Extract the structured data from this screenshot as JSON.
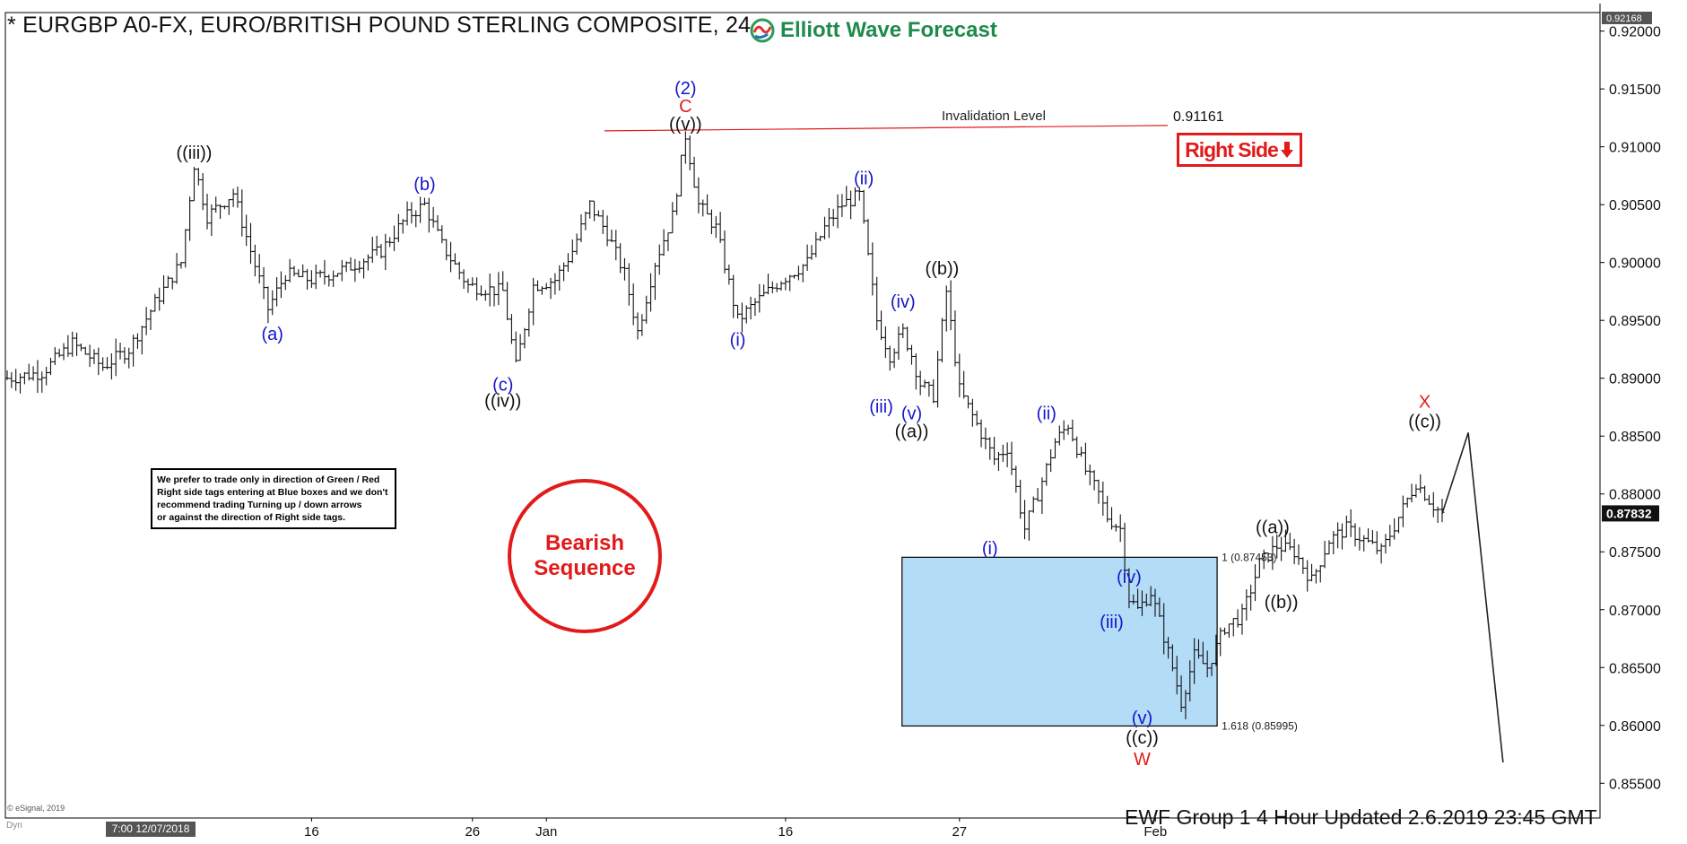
{
  "title": "* EURGBP A0-FX, EURO/BRITISH POUND STERLING COMPOSITE, 24",
  "brand": {
    "name": "Elliott Wave Forecast"
  },
  "footer": "EWF Group 1 4 Hour  Updated 2.6.2019 23:45 GMT",
  "copyright": "© eSignal, 2019",
  "dyn_label": "Dyn",
  "first_bar_date": "7:00 12/07/2018",
  "note_lines": [
    "We prefer to trade only in direction of Green / Red",
    "Right side tags entering at Blue boxes and we don't",
    "recommend trading Turning up / down arrows",
    "or against the direction of Right side tags."
  ],
  "bearish_label": [
    "Bearish",
    "Sequence"
  ],
  "right_side_tag": {
    "label": "Right Side",
    "arrow_icon": "down-arrow-icon",
    "color": "#e21a1a"
  },
  "invalidation": {
    "label": "Invalidation Level",
    "price_label": "0.91161",
    "price": 0.91161
  },
  "blue_box": {
    "top_label": "1 (0.87453)",
    "bottom_label": "1.618 (0.85995)",
    "top": 0.87453,
    "bottom": 0.85995,
    "color": "#b3dcf7"
  },
  "price_axis": {
    "high_tag": "0.92168",
    "current_tag": "0.87832",
    "current_value": 0.87832,
    "ticks": [
      "0.92000",
      "0.91500",
      "0.91000",
      "0.90500",
      "0.90000",
      "0.89500",
      "0.89000",
      "0.88500",
      "0.88000",
      "0.87500",
      "0.87000",
      "0.86500",
      "0.86000",
      "0.85500"
    ]
  },
  "time_axis": [
    "16",
    "26",
    "Jan",
    "16",
    "27",
    "Feb"
  ],
  "colors": {
    "blue_label": "#1515c8",
    "red_label": "#e21a1a",
    "black_label": "#111111",
    "bar": "#111111",
    "invalidation_line": "#e21a1a"
  },
  "chart_data": {
    "type": "ohlc",
    "symbol": "EURGBP",
    "timeframe": "4 Hour",
    "y_range": [
      0.852,
      0.9216
    ],
    "anchors": [
      [
        0,
        0.89
      ],
      [
        8,
        0.8905
      ],
      [
        15,
        0.893
      ],
      [
        22,
        0.891
      ],
      [
        28,
        0.8925
      ],
      [
        34,
        0.8965
      ],
      [
        40,
        0.9
      ],
      [
        43,
        0.9085
      ],
      [
        46,
        0.904
      ],
      [
        52,
        0.906
      ],
      [
        56,
        0.901
      ],
      [
        60,
        0.896
      ],
      [
        64,
        0.899
      ],
      [
        70,
        0.8985
      ],
      [
        78,
        0.8995
      ],
      [
        86,
        0.901
      ],
      [
        92,
        0.904
      ],
      [
        96,
        0.905
      ],
      [
        100,
        0.9015
      ],
      [
        106,
        0.898
      ],
      [
        114,
        0.8975
      ],
      [
        117,
        0.891
      ],
      [
        121,
        0.898
      ],
      [
        126,
        0.8985
      ],
      [
        130,
        0.901
      ],
      [
        134,
        0.905
      ],
      [
        138,
        0.9025
      ],
      [
        142,
        0.899
      ],
      [
        145,
        0.894
      ],
      [
        149,
        0.9
      ],
      [
        153,
        0.904
      ],
      [
        156,
        0.911
      ],
      [
        159,
        0.905
      ],
      [
        163,
        0.903
      ],
      [
        168,
        0.895
      ],
      [
        172,
        0.8965
      ],
      [
        178,
        0.8985
      ],
      [
        184,
        0.9
      ],
      [
        188,
        0.903
      ],
      [
        192,
        0.905
      ],
      [
        196,
        0.9058
      ],
      [
        200,
        0.895
      ],
      [
        203,
        0.892
      ],
      [
        206,
        0.894
      ],
      [
        208,
        0.892
      ],
      [
        210,
        0.8895
      ],
      [
        213,
        0.8885
      ],
      [
        216,
        0.8975
      ],
      [
        219,
        0.889
      ],
      [
        223,
        0.886
      ],
      [
        227,
        0.883
      ],
      [
        230,
        0.884
      ],
      [
        234,
        0.877
      ],
      [
        237,
        0.88
      ],
      [
        241,
        0.8845
      ],
      [
        244,
        0.886
      ],
      [
        248,
        0.882
      ],
      [
        251,
        0.88
      ],
      [
        253,
        0.878
      ],
      [
        256,
        0.877
      ],
      [
        258,
        0.871
      ],
      [
        260,
        0.87
      ],
      [
        263,
        0.8715
      ],
      [
        265,
        0.869
      ],
      [
        268,
        0.865
      ],
      [
        270,
        0.862
      ],
      [
        273,
        0.866
      ],
      [
        276,
        0.865
      ],
      [
        280,
        0.8685
      ],
      [
        284,
        0.8695
      ],
      [
        288,
        0.874
      ],
      [
        292,
        0.8755
      ],
      [
        296,
        0.875
      ],
      [
        300,
        0.8725
      ],
      [
        304,
        0.876
      ],
      [
        308,
        0.877
      ],
      [
        312,
        0.876
      ],
      [
        316,
        0.875
      ],
      [
        320,
        0.878
      ],
      [
        324,
        0.881
      ],
      [
        328,
        0.879
      ],
      [
        330,
        0.8783
      ]
    ],
    "last_bar_index": 330,
    "projection": [
      [
        330,
        0.8783
      ],
      [
        336,
        0.8853
      ],
      [
        344,
        0.8568
      ]
    ],
    "wave_labels": [
      {
        "text": "(2)",
        "i": 156,
        "price": 0.911,
        "pos": "above",
        "offset": 46,
        "color": "blue"
      },
      {
        "text": "C",
        "i": 156,
        "price": 0.911,
        "pos": "above",
        "offset": 26,
        "color": "red"
      },
      {
        "text": "((v))",
        "i": 156,
        "price": 0.911,
        "pos": "above",
        "offset": 6,
        "color": "black"
      },
      {
        "text": "((iii))",
        "i": 43,
        "price": 0.9085,
        "pos": "above",
        "offset": 6,
        "color": "black"
      },
      {
        "text": "(b)",
        "i": 96,
        "price": 0.9058,
        "pos": "above",
        "offset": 6,
        "color": "blue"
      },
      {
        "text": "(a)",
        "i": 61,
        "price": 0.895,
        "pos": "below",
        "offset": 6,
        "color": "blue"
      },
      {
        "text": "(c)",
        "i": 114,
        "price": 0.8905,
        "pos": "below",
        "offset": 4,
        "color": "blue"
      },
      {
        "text": "((iv))",
        "i": 114,
        "price": 0.8905,
        "pos": "below",
        "offset": 22,
        "color": "black"
      },
      {
        "text": "(i)",
        "i": 168,
        "price": 0.8945,
        "pos": "below",
        "offset": 6,
        "color": "blue"
      },
      {
        "text": "(ii)",
        "i": 197,
        "price": 0.9063,
        "pos": "above",
        "offset": 6,
        "color": "blue"
      },
      {
        "text": "(iii)",
        "i": 201,
        "price": 0.8895,
        "pos": "below",
        "offset": 16,
        "color": "blue"
      },
      {
        "text": "(iv)",
        "i": 206,
        "price": 0.8955,
        "pos": "above",
        "offset": 8,
        "color": "blue"
      },
      {
        "text": "(v)",
        "i": 208,
        "price": 0.888,
        "pos": "below",
        "offset": 4,
        "color": "blue"
      },
      {
        "text": "((a))",
        "i": 208,
        "price": 0.888,
        "pos": "below",
        "offset": 24,
        "color": "black"
      },
      {
        "text": "((b))",
        "i": 215,
        "price": 0.8985,
        "pos": "above",
        "offset": 6,
        "color": "black"
      },
      {
        "text": "(i)",
        "i": 226,
        "price": 0.8765,
        "pos": "below",
        "offset": 6,
        "color": "blue"
      },
      {
        "text": "(ii)",
        "i": 239,
        "price": 0.886,
        "pos": "above",
        "offset": 6,
        "color": "blue"
      },
      {
        "text": "(iv)",
        "i": 258,
        "price": 0.872,
        "pos": "above",
        "offset": 4,
        "color": "blue"
      },
      {
        "text": "(iii)",
        "i": 254,
        "price": 0.87,
        "pos": "below",
        "offset": 4,
        "color": "blue"
      },
      {
        "text": "(v)",
        "i": 261,
        "price": 0.8617,
        "pos": "below",
        "offset": 4,
        "color": "blue"
      },
      {
        "text": "((c))",
        "i": 261,
        "price": 0.8617,
        "pos": "below",
        "offset": 26,
        "color": "black"
      },
      {
        "text": "W",
        "i": 261,
        "price": 0.8617,
        "pos": "below",
        "offset": 50,
        "color": "red"
      },
      {
        "text": "((a))",
        "i": 291,
        "price": 0.876,
        "pos": "above",
        "offset": 8,
        "color": "black"
      },
      {
        "text": "((b))",
        "i": 293,
        "price": 0.872,
        "pos": "below",
        "offset": 8,
        "color": "black"
      },
      {
        "text": "X",
        "i": 326,
        "price": 0.8853,
        "pos": "above",
        "offset": 28,
        "color": "red"
      },
      {
        "text": "((c))",
        "i": 326,
        "price": 0.8853,
        "pos": "above",
        "offset": 6,
        "color": "black"
      }
    ]
  }
}
